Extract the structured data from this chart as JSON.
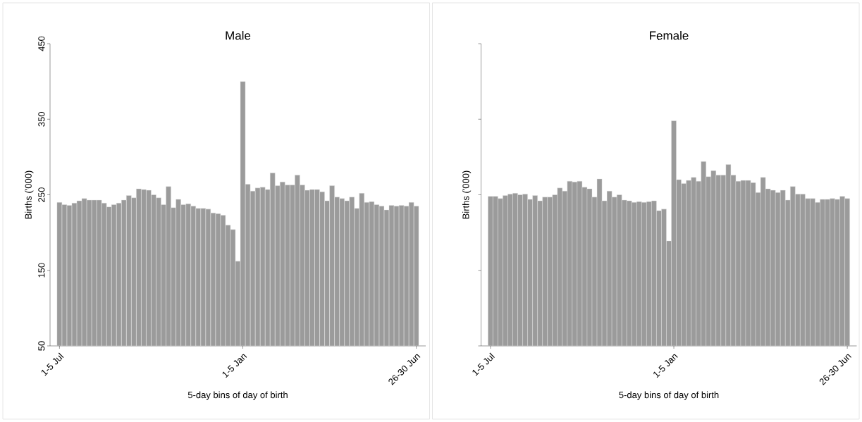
{
  "chart_data": [
    {
      "type": "bar",
      "title": "Male",
      "xlabel": "5-day bins of day of birth",
      "ylabel": "Births ('000)",
      "color": "#9b9b9b",
      "ylim": [
        50,
        450
      ],
      "yticks": [
        50,
        150,
        250,
        350,
        450
      ],
      "categories": [
        "1-5 Jul",
        null,
        null,
        null,
        null,
        null,
        null,
        null,
        null,
        null,
        null,
        null,
        null,
        null,
        null,
        null,
        null,
        null,
        null,
        null,
        null,
        null,
        null,
        null,
        null,
        null,
        null,
        null,
        null,
        null,
        null,
        null,
        null,
        null,
        null,
        null,
        null,
        "1-5 Jan",
        null,
        null,
        null,
        null,
        null,
        null,
        null,
        null,
        null,
        null,
        null,
        null,
        null,
        null,
        null,
        null,
        null,
        null,
        null,
        null,
        null,
        null,
        null,
        null,
        null,
        null,
        null,
        null,
        null,
        null,
        null,
        null,
        null,
        null,
        "26-30 Jun"
      ],
      "values": [
        240,
        237,
        236,
        239,
        242,
        245,
        243,
        243,
        243,
        239,
        234,
        237,
        239,
        243,
        249,
        246,
        258,
        257,
        256,
        250,
        246,
        237,
        261,
        233,
        244,
        237,
        238,
        235,
        232,
        232,
        231,
        226,
        225,
        223,
        210,
        204,
        162,
        400,
        264,
        255,
        259,
        260,
        257,
        279,
        262,
        267,
        263,
        263,
        276,
        263,
        256,
        257,
        257,
        254,
        242,
        262,
        247,
        245,
        242,
        247,
        232,
        252,
        240,
        241,
        237,
        235,
        230,
        236,
        235,
        236,
        235,
        240,
        235
      ]
    },
    {
      "type": "bar",
      "title": "Female",
      "xlabel": "5-day bins of day of birth",
      "ylabel": "Births ('000)",
      "color": "#9b9b9b",
      "ylim": [
        50,
        450
      ],
      "yticks": [
        50,
        150,
        250,
        350,
        450
      ],
      "tick_labels": "x",
      "categories": [
        "1-5 Jul",
        null,
        null,
        null,
        null,
        null,
        null,
        null,
        null,
        null,
        null,
        null,
        null,
        null,
        null,
        null,
        null,
        null,
        null,
        null,
        null,
        null,
        null,
        null,
        null,
        null,
        null,
        null,
        null,
        null,
        null,
        null,
        null,
        null,
        null,
        null,
        null,
        "1-5 Jan",
        null,
        null,
        null,
        null,
        null,
        null,
        null,
        null,
        null,
        null,
        null,
        null,
        null,
        null,
        null,
        null,
        null,
        null,
        null,
        null,
        null,
        null,
        null,
        null,
        null,
        null,
        null,
        null,
        null,
        null,
        null,
        null,
        null,
        null,
        "26-30 Jun"
      ],
      "values": [
        248,
        248,
        245,
        249,
        251,
        252,
        250,
        251,
        244,
        249,
        242,
        247,
        247,
        250,
        259,
        255,
        268,
        267,
        268,
        260,
        258,
        247,
        271,
        242,
        255,
        247,
        250,
        243,
        242,
        240,
        241,
        240,
        241,
        242,
        229,
        231,
        189,
        348,
        270,
        265,
        269,
        273,
        268,
        294,
        274,
        282,
        276,
        276,
        290,
        276,
        268,
        269,
        269,
        266,
        253,
        273,
        258,
        256,
        253,
        256,
        243,
        261,
        251,
        251,
        245,
        245,
        240,
        244,
        244,
        245,
        244,
        248,
        245
      ]
    }
  ]
}
